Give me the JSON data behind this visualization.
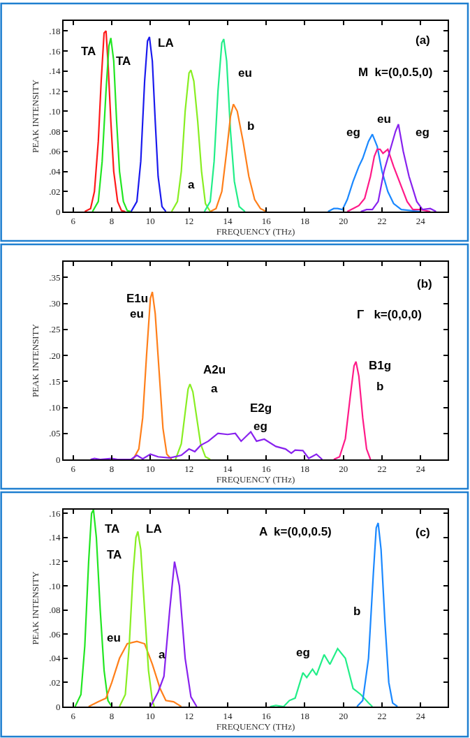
{
  "chart_data": [
    {
      "type": "line",
      "xlabel": "FREQUENCY (THz)",
      "ylabel": "PEAK INTENSITY",
      "xlim": [
        5.5,
        25.4
      ],
      "ylim": [
        0,
        0.19
      ],
      "xticks": [
        6,
        8,
        10,
        12,
        14,
        16,
        18,
        20,
        22,
        24
      ],
      "yticks": [
        0,
        {
          "value": 0.02,
          "label": ".02"
        },
        {
          "value": 0.04,
          "label": ".04"
        },
        {
          "value": 0.06,
          "label": ".06"
        },
        {
          "value": 0.08,
          "label": ".08"
        },
        {
          "value": 0.1,
          "label": ".10"
        },
        {
          "value": 0.12,
          "label": ".12"
        },
        {
          "value": 0.14,
          "label": ".14"
        },
        {
          "value": 0.16,
          "label": ".16"
        },
        {
          "value": 0.18,
          "label": ".18"
        }
      ],
      "marker": "none",
      "line_style": "solid",
      "series": [
        {
          "color": "#ff1a1a",
          "x": [
            6.6,
            6.9,
            7.1,
            7.3,
            7.45,
            7.6,
            7.7,
            7.8,
            7.95,
            8.1,
            8.3,
            8.5,
            8.7
          ],
          "values": [
            0,
            0.003,
            0.02,
            0.07,
            0.13,
            0.178,
            0.18,
            0.15,
            0.09,
            0.04,
            0.01,
            0.001,
            0
          ]
        },
        {
          "color": "#22e622",
          "x": [
            7.0,
            7.3,
            7.5,
            7.7,
            7.85,
            7.95,
            8.1,
            8.25,
            8.4,
            8.6,
            8.8,
            9.0
          ],
          "values": [
            0,
            0.01,
            0.05,
            0.12,
            0.165,
            0.173,
            0.15,
            0.09,
            0.04,
            0.01,
            0.001,
            0
          ]
        },
        {
          "color": "#1a1aee",
          "x": [
            9.0,
            9.3,
            9.5,
            9.7,
            9.85,
            9.95,
            10.1,
            10.25,
            10.4,
            10.6,
            10.8
          ],
          "values": [
            0,
            0.01,
            0.05,
            0.13,
            0.17,
            0.174,
            0.15,
            0.09,
            0.035,
            0.005,
            0
          ]
        },
        {
          "color": "#88ee22",
          "x": [
            11.1,
            11.4,
            11.6,
            11.8,
            12.0,
            12.1,
            12.25,
            12.45,
            12.65,
            12.85,
            13.1
          ],
          "values": [
            0,
            0.01,
            0.04,
            0.1,
            0.138,
            0.141,
            0.13,
            0.09,
            0.04,
            0.008,
            0
          ]
        },
        {
          "color": "#22ee88",
          "x": [
            12.8,
            13.1,
            13.3,
            13.5,
            13.7,
            13.8,
            13.95,
            14.15,
            14.35,
            14.6,
            14.9
          ],
          "values": [
            0,
            0.01,
            0.05,
            0.12,
            0.168,
            0.172,
            0.15,
            0.08,
            0.03,
            0.005,
            0
          ]
        },
        {
          "color": "#ff7f1a",
          "x": [
            13.1,
            13.4,
            13.7,
            13.95,
            14.15,
            14.3,
            14.5,
            14.8,
            15.1,
            15.4,
            15.7,
            16.0
          ],
          "values": [
            0,
            0.003,
            0.02,
            0.06,
            0.095,
            0.107,
            0.1,
            0.07,
            0.035,
            0.012,
            0.003,
            0
          ]
        },
        {
          "color": "#1a88ff",
          "x": [
            19.2,
            19.5,
            19.7,
            19.95,
            20.2,
            20.5,
            20.8,
            21.0,
            21.3,
            21.5,
            21.75,
            22.0,
            22.3,
            22.6,
            23.0,
            23.5,
            24.0
          ],
          "values": [
            0,
            0.003,
            0.003,
            0.002,
            0.012,
            0.03,
            0.045,
            0.053,
            0.07,
            0.077,
            0.065,
            0.04,
            0.02,
            0.008,
            0.002,
            0.001,
            0
          ]
        },
        {
          "color": "#ff1a88",
          "x": [
            20.2,
            20.5,
            20.8,
            21.1,
            21.4,
            21.6,
            21.75,
            21.9,
            22.05,
            22.3,
            22.6,
            23.0,
            23.3,
            23.6,
            24.0,
            24.5
          ],
          "values": [
            0,
            0.003,
            0.006,
            0.013,
            0.035,
            0.055,
            0.062,
            0.062,
            0.058,
            0.062,
            0.045,
            0.025,
            0.01,
            0.002,
            0.002,
            0
          ]
        },
        {
          "color": "#8822ee",
          "x": [
            20.9,
            21.2,
            21.5,
            21.8,
            22.1,
            22.4,
            22.7,
            22.85,
            23.1,
            23.4,
            23.8,
            24.1,
            24.5,
            24.8
          ],
          "values": [
            0,
            0.002,
            0.002,
            0.01,
            0.04,
            0.06,
            0.08,
            0.087,
            0.06,
            0.035,
            0.01,
            0.002,
            0.003,
            0
          ]
        }
      ],
      "annotations": [
        "TA",
        "TA",
        "LA",
        "a",
        "eu",
        "b",
        "eg",
        "eu",
        "eg",
        "(a)",
        "M  k=(0,0.5,0)"
      ]
    },
    {
      "type": "line",
      "xlabel": "FREQUENCY (THz)",
      "ylabel": "PEAK INTENSITY",
      "xlim": [
        5.5,
        25.4
      ],
      "ylim": [
        0,
        0.38
      ],
      "xticks": [
        6,
        8,
        10,
        12,
        14,
        16,
        18,
        20,
        22,
        24
      ],
      "yticks": [
        0,
        {
          "value": 0.05,
          "label": ".05"
        },
        {
          "value": 0.1,
          "label": ".10"
        },
        {
          "value": 0.15,
          "label": ".15"
        },
        {
          "value": 0.2,
          "label": ".20"
        },
        {
          "value": 0.25,
          "label": ".25"
        },
        {
          "value": 0.3,
          "label": ".30"
        },
        {
          "value": 0.35,
          "label": ".35"
        }
      ],
      "marker": "none",
      "line_style": "solid",
      "series": [
        {
          "color": "#ff7f1a",
          "x": [
            9.1,
            9.4,
            9.6,
            9.8,
            10.0,
            10.1,
            10.25,
            10.45,
            10.65,
            10.85,
            11.1
          ],
          "values": [
            0,
            0.02,
            0.08,
            0.2,
            0.31,
            0.322,
            0.28,
            0.17,
            0.06,
            0.01,
            0
          ]
        },
        {
          "color": "#88ee22",
          "x": [
            11.3,
            11.6,
            11.8,
            11.95,
            12.05,
            12.2,
            12.4,
            12.6,
            12.85,
            13.1
          ],
          "values": [
            0,
            0.03,
            0.09,
            0.135,
            0.145,
            0.13,
            0.08,
            0.03,
            0.005,
            0
          ]
        },
        {
          "color": "#8822ee",
          "x": [
            6.9,
            7.1,
            7.4,
            8.0,
            8.3,
            9.0,
            9.3,
            9.6,
            10.0,
            10.4,
            11.0,
            11.6,
            12.0,
            12.3,
            12.6,
            13.0,
            13.5,
            14.0,
            14.4,
            14.7,
            15.2,
            15.5,
            15.9,
            16.5,
            17.0,
            17.3,
            17.5,
            17.9,
            18.2,
            18.6,
            18.9
          ],
          "values": [
            0,
            0.002,
            0,
            0.002,
            0,
            0,
            0.008,
            0.001,
            0.01,
            0.005,
            0.003,
            0.008,
            0.02,
            0.015,
            0.027,
            0.035,
            0.05,
            0.048,
            0.05,
            0.035,
            0.053,
            0.035,
            0.039,
            0.025,
            0.02,
            0.012,
            0.018,
            0.017,
            0.002,
            0.01,
            0
          ]
        },
        {
          "color": "#ff1a88",
          "x": [
            19.5,
            19.8,
            20.1,
            20.35,
            20.55,
            20.65,
            20.8,
            21.0,
            21.2,
            21.4
          ],
          "values": [
            0,
            0.005,
            0.04,
            0.12,
            0.18,
            0.188,
            0.16,
            0.08,
            0.02,
            0
          ]
        }
      ],
      "annotations": [
        "E1u",
        "eu",
        "A2u",
        "a",
        "E2g",
        "eg",
        "B1g",
        "b",
        "(b)",
        "Γ   k=(0,0,0)"
      ]
    },
    {
      "type": "line",
      "xlabel": "FREQUENCY (THz)",
      "ylabel": "PEAK INTENSITY",
      "xlim": [
        5.5,
        25.4
      ],
      "ylim": [
        0,
        0.163
      ],
      "xticks": [
        6,
        8,
        10,
        12,
        14,
        16,
        18,
        20,
        22,
        24
      ],
      "yticks": [
        0,
        {
          "value": 0.02,
          "label": ".02"
        },
        {
          "value": 0.04,
          "label": ".04"
        },
        {
          "value": 0.06,
          "label": ".06"
        },
        {
          "value": 0.08,
          "label": ".08"
        },
        {
          "value": 0.1,
          "label": ".10"
        },
        {
          "value": 0.12,
          "label": ".12"
        },
        {
          "value": 0.14,
          "label": ".14"
        },
        {
          "value": 0.16,
          "label": ".16"
        }
      ],
      "marker": "none",
      "line_style": "solid",
      "series": [
        {
          "color": "#22e622",
          "x": [
            6.1,
            6.4,
            6.6,
            6.8,
            6.95,
            7.05,
            7.2,
            7.4,
            7.6,
            7.8,
            8.0
          ],
          "values": [
            0,
            0.01,
            0.05,
            0.12,
            0.16,
            0.163,
            0.14,
            0.08,
            0.03,
            0.005,
            0
          ]
        },
        {
          "color": "#ff7f1a",
          "x": [
            6.8,
            7.3,
            7.7,
            8.0,
            8.4,
            8.8,
            9.3,
            9.7,
            10.1,
            10.5,
            10.8,
            11.2,
            11.6
          ],
          "values": [
            0,
            0.004,
            0.007,
            0.02,
            0.04,
            0.052,
            0.054,
            0.052,
            0.035,
            0.015,
            0.005,
            0.004,
            0
          ]
        },
        {
          "color": "#88ee22",
          "x": [
            8.4,
            8.7,
            8.9,
            9.1,
            9.25,
            9.35,
            9.5,
            9.7,
            9.9,
            10.1,
            10.2
          ],
          "values": [
            0,
            0.01,
            0.05,
            0.11,
            0.14,
            0.145,
            0.13,
            0.08,
            0.03,
            0.005,
            0
          ]
        },
        {
          "color": "#8822ee",
          "x": [
            10.0,
            10.4,
            10.7,
            11.0,
            11.25,
            11.5,
            11.8,
            12.1,
            12.4
          ],
          "values": [
            0,
            0.012,
            0.025,
            0.08,
            0.12,
            0.1,
            0.04,
            0.008,
            0
          ]
        },
        {
          "color": "#22ee88",
          "x": [
            16.2,
            16.5,
            16.9,
            17.2,
            17.5,
            17.9,
            18.1,
            18.4,
            18.6,
            19.0,
            19.3,
            19.7,
            20.1,
            20.5,
            20.9,
            21.3,
            21.5
          ],
          "values": [
            0,
            0.001,
            0,
            0.005,
            0.007,
            0.028,
            0.024,
            0.031,
            0.026,
            0.043,
            0.035,
            0.048,
            0.04,
            0.015,
            0.01,
            0.003,
            0
          ]
        },
        {
          "color": "#1a88ff",
          "x": [
            20.7,
            21.0,
            21.3,
            21.55,
            21.7,
            21.8,
            21.95,
            22.15,
            22.35,
            22.55,
            22.8
          ],
          "values": [
            0,
            0.005,
            0.04,
            0.11,
            0.148,
            0.152,
            0.13,
            0.07,
            0.02,
            0.003,
            0
          ]
        }
      ],
      "annotations": [
        "TA",
        "TA",
        "LA",
        "eu",
        "a",
        "eg",
        "b",
        "A  k=(0,0,0.5)",
        "(c)"
      ]
    }
  ]
}
